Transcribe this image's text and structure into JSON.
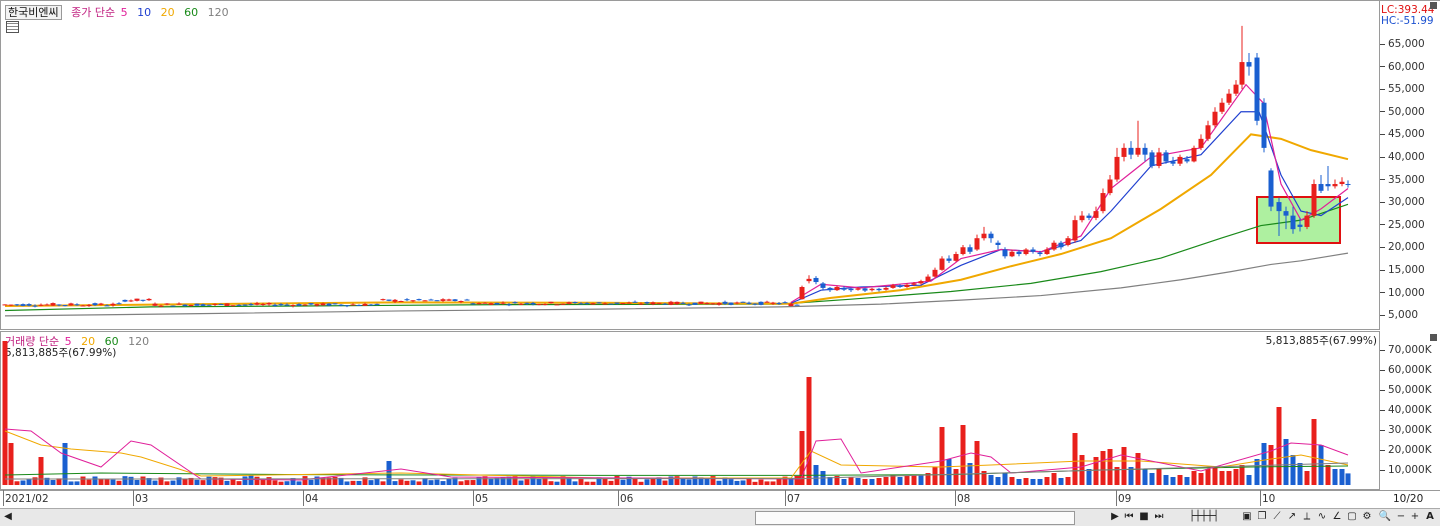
{
  "stock_name": "한국비엔씨",
  "price_legend": {
    "prefix": "종가 단순",
    "ma5": "5",
    "ma10": "10",
    "ma20": "20",
    "ma60": "60",
    "ma120": "120"
  },
  "volume_legend": {
    "prefix": "거래량 단순",
    "ma5": "5",
    "ma20": "20",
    "ma60": "60",
    "ma120": "120"
  },
  "lc_label": "LC:393.44",
  "hc_label": "HC:-51.99",
  "volume_readout_left": "5,813,885주(67.99%)",
  "volume_readout_right": "5,813,885주(67.99%)",
  "date_end": "10/20",
  "colors": {
    "up": "#e8201c",
    "down": "#1a5fd0",
    "ma5": "#e0209a",
    "ma10": "#2040d0",
    "ma20": "#f0a800",
    "ma60": "#1a8a1a",
    "ma120": "#808080",
    "highlight": "#aef0a0",
    "highlight_border": "#e01010"
  },
  "chart_data": [
    {
      "type": "candlestick",
      "title": "한국비엔씨",
      "y_ticks": [
        "65,000",
        "60,000",
        "55,000",
        "50,000",
        "45,000",
        "40,000",
        "35,000",
        "30,000",
        "25,000",
        "20,000",
        "15,000",
        "10,000",
        "5,000"
      ],
      "ylim": [
        0,
        72000
      ],
      "x_labels": [
        "2021/02",
        "03",
        "04",
        "05",
        "06",
        "07",
        "08",
        "09",
        "10"
      ],
      "series": [
        {
          "name": "5",
          "values": []
        },
        {
          "name": "10",
          "values": []
        },
        {
          "name": "20",
          "values": []
        },
        {
          "name": "60",
          "values": []
        },
        {
          "name": "120",
          "values": []
        }
      ]
    },
    {
      "type": "bar",
      "title": "거래량",
      "y_ticks": [
        "70,000K",
        "60,000K",
        "50,000K",
        "40,000K",
        "30,000K",
        "20,000K",
        "10,000K"
      ],
      "ylim": [
        0,
        72000
      ]
    }
  ]
}
